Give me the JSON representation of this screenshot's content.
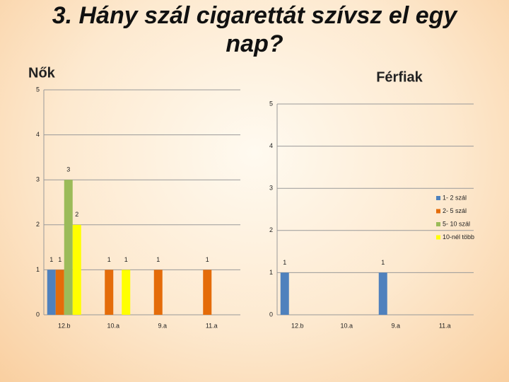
{
  "title": "3. Hány szál cigarettát szívsz el egy nap?",
  "chart_data": [
    {
      "type": "bar",
      "title": "Nők",
      "categories": [
        "12.b",
        "10.a",
        "9.a",
        "11.a"
      ],
      "series": [
        {
          "name": "1- 2 szál",
          "color": "#4f81bd",
          "values": [
            1,
            null,
            null,
            null
          ]
        },
        {
          "name": "2- 5 szál",
          "color": "#e46c0a",
          "values": [
            1,
            1,
            1,
            1
          ]
        },
        {
          "name": "5- 10 szál",
          "color": "#9bbb59",
          "values": [
            3,
            null,
            null,
            null
          ]
        },
        {
          "name": "10-nél több",
          "color": "#ffff00",
          "values": [
            2,
            1,
            null,
            null
          ]
        }
      ],
      "ylim": [
        0,
        5
      ],
      "yticks": [
        0,
        1,
        2,
        3,
        4,
        5
      ],
      "grid": true
    },
    {
      "type": "bar",
      "title": "Férfiak",
      "categories": [
        "12.b",
        "10.a",
        "9.a",
        "11.a"
      ],
      "series": [
        {
          "name": "1- 2 szál",
          "color": "#4f81bd",
          "values": [
            1,
            null,
            1,
            null
          ]
        },
        {
          "name": "2- 5 szál",
          "color": "#e46c0a",
          "values": [
            null,
            null,
            null,
            null
          ]
        },
        {
          "name": "5- 10 szál",
          "color": "#9bbb59",
          "values": [
            null,
            null,
            null,
            null
          ]
        },
        {
          "name": "10-nél több",
          "color": "#ffff00",
          "values": [
            null,
            null,
            null,
            null
          ]
        }
      ],
      "ylim": [
        0,
        5
      ],
      "yticks": [
        0,
        1,
        2,
        3,
        4,
        5
      ],
      "grid": true,
      "legend": "right"
    }
  ]
}
